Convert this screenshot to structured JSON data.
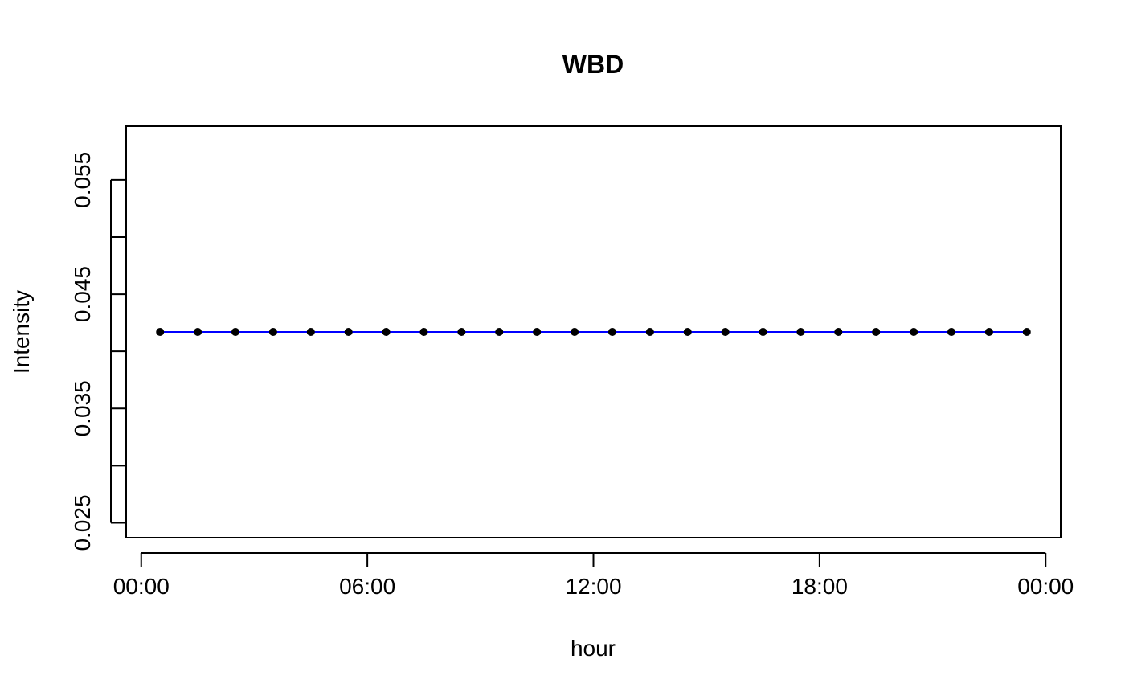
{
  "chart_data": {
    "type": "line",
    "title": "WBD",
    "xlabel": "hour",
    "ylabel": "Intensity",
    "x_tick_labels": [
      "00:00",
      "06:00",
      "12:00",
      "18:00",
      "00:00"
    ],
    "x_tick_hours": [
      0,
      6,
      12,
      18,
      24
    ],
    "xlim": [
      -0.4,
      24.4
    ],
    "y_tick_labels": [
      "0.025",
      "0.035",
      "0.045",
      "0.055"
    ],
    "y_major_ticks": [
      0.025,
      0.035,
      0.045,
      0.055
    ],
    "y_minor_ticks": [
      0.03,
      0.04,
      0.05
    ],
    "ylim": [
      0.0237,
      0.0597
    ],
    "grid": false,
    "line_color": "#0000ff",
    "marker_color": "#000000",
    "series": [
      {
        "x": [
          0.5,
          1.5,
          2.5,
          3.5,
          4.5,
          5.5,
          6.5,
          7.5,
          8.5,
          9.5,
          10.5,
          11.5,
          12.5,
          13.5,
          14.5,
          15.5,
          16.5,
          17.5,
          18.5,
          19.5,
          20.5,
          21.5,
          22.5,
          23.5
        ],
        "values": [
          0.0417,
          0.0417,
          0.0417,
          0.0417,
          0.0417,
          0.0417,
          0.0417,
          0.0417,
          0.0417,
          0.0417,
          0.0417,
          0.0417,
          0.0417,
          0.0417,
          0.0417,
          0.0417,
          0.0417,
          0.0417,
          0.0417,
          0.0417,
          0.0417,
          0.0417,
          0.0417,
          0.0417
        ]
      }
    ]
  }
}
